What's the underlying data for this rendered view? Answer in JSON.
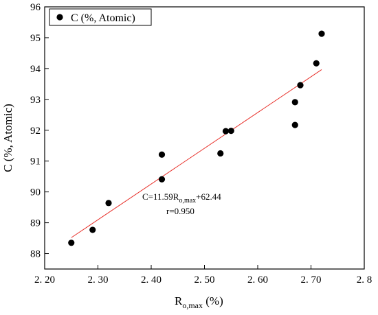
{
  "chart_data": {
    "type": "scatter",
    "series": [
      {
        "name": "C  (%, Atomic)",
        "color": "#000000",
        "points": [
          {
            "x": 2.25,
            "y": 88.35
          },
          {
            "x": 2.29,
            "y": 88.77
          },
          {
            "x": 2.32,
            "y": 89.64
          },
          {
            "x": 2.42,
            "y": 91.21
          },
          {
            "x": 2.42,
            "y": 90.41
          },
          {
            "x": 2.53,
            "y": 91.25
          },
          {
            "x": 2.54,
            "y": 91.97
          },
          {
            "x": 2.55,
            "y": 91.98
          },
          {
            "x": 2.67,
            "y": 92.91
          },
          {
            "x": 2.67,
            "y": 92.17
          },
          {
            "x": 2.68,
            "y": 93.46
          },
          {
            "x": 2.71,
            "y": 94.17
          },
          {
            "x": 2.72,
            "y": 95.13
          }
        ]
      }
    ],
    "fit_line": {
      "slope": 11.59,
      "intercept": 62.44,
      "x_range": [
        2.25,
        2.72
      ],
      "color": "#e8302a",
      "equation_main": "C=11.59R",
      "equation_sub": "o,max",
      "equation_tail": "+62.44",
      "r_text": "r=0.950"
    },
    "x_axis": {
      "label_main": "R",
      "label_sub": "o,max",
      "label_tail": " (%)",
      "range": [
        2.2,
        2.8
      ],
      "ticks": [
        2.2,
        2.3,
        2.4,
        2.5,
        2.6,
        2.7,
        2.8
      ],
      "tick_labels": [
        "2. 20",
        "2. 30",
        "2. 40",
        "2. 50",
        "2. 60",
        "2. 70",
        "2. 8"
      ]
    },
    "y_axis": {
      "label": "C  (%, Atomic)",
      "range": [
        87.5,
        96
      ],
      "ticks": [
        88,
        89,
        90,
        91,
        92,
        93,
        94,
        95,
        96
      ],
      "tick_labels": [
        "88",
        "89",
        "90",
        "91",
        "92",
        "93",
        "94",
        "95",
        "96"
      ]
    },
    "legend": {
      "position": "top-left",
      "label": "C  (%, Atomic)"
    },
    "grid": false
  }
}
